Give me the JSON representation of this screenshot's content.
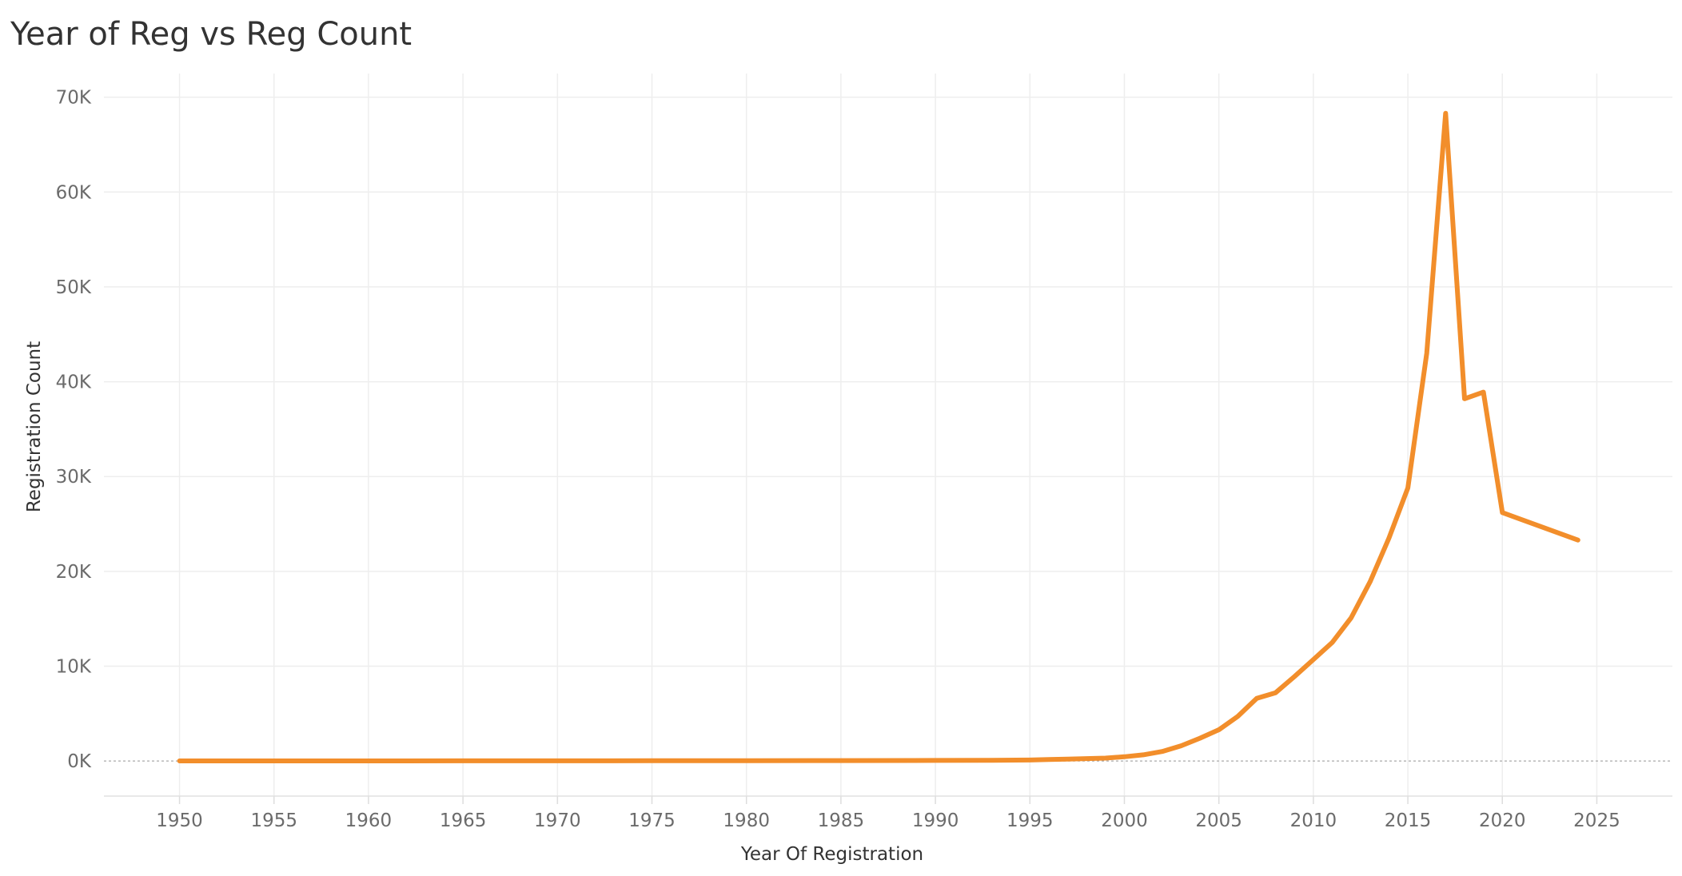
{
  "chart_data": {
    "type": "line",
    "title": "Year of Reg vs Reg Count",
    "xlabel": "Year Of Registration",
    "ylabel": "Registration Count",
    "xlim": [
      1946,
      2029
    ],
    "ylim": [
      -3700,
      72500
    ],
    "x_ticks": [
      1950,
      1955,
      1960,
      1965,
      1970,
      1975,
      1980,
      1985,
      1990,
      1995,
      2000,
      2005,
      2010,
      2015,
      2020,
      2025
    ],
    "x_tick_labels": [
      "1950",
      "1955",
      "1960",
      "1965",
      "1970",
      "1975",
      "1980",
      "1985",
      "1990",
      "1995",
      "2000",
      "2005",
      "2010",
      "2015",
      "2020",
      "2025"
    ],
    "y_ticks": [
      0,
      10000,
      20000,
      30000,
      40000,
      50000,
      60000,
      70000
    ],
    "y_tick_labels": [
      "0K",
      "10K",
      "20K",
      "30K",
      "40K",
      "50K",
      "60K",
      "70K"
    ],
    "grid": true,
    "line_color": "#f28e2b",
    "series": [
      {
        "x": [
          1950,
          1955,
          1960,
          1965,
          1970,
          1975,
          1980,
          1985,
          1990,
          1993,
          1995,
          1996,
          1997,
          1998,
          1999,
          2000,
          2001,
          2002,
          2003,
          2004,
          2005,
          2006,
          2007,
          2008,
          2009,
          2010,
          2011,
          2012,
          2013,
          2014,
          2015,
          2016,
          2017,
          2018,
          2019,
          2020,
          2024
        ],
        "y": [
          5,
          8,
          10,
          15,
          20,
          25,
          30,
          40,
          60,
          80,
          100,
          150,
          200,
          250,
          300,
          450,
          650,
          1000,
          1600,
          2400,
          3300,
          4700,
          6600,
          7200,
          8900,
          10700,
          12500,
          15100,
          18900,
          23500,
          28800,
          43000,
          68300,
          38200,
          38900,
          26200,
          23300
        ]
      }
    ]
  }
}
